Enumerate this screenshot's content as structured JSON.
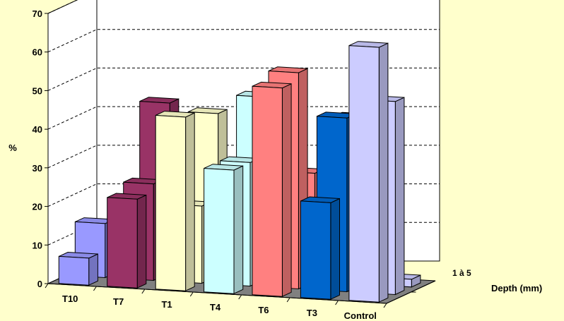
{
  "chart_data": {
    "type": "bar",
    "subtype": "3d-column",
    "title": "",
    "ylabel": "%",
    "zlabel": "Depth (mm)",
    "ylim": [
      0,
      70
    ],
    "yticks": [
      0,
      10,
      20,
      30,
      40,
      50,
      60,
      70
    ],
    "grid": true,
    "categories": [
      "T10",
      "T7",
      "T1",
      "T4",
      "T6",
      "T3",
      "Control"
    ],
    "depth_tick_label": "1 à 5",
    "colors": {
      "T10": "#9999ff",
      "T7": "#993366",
      "T1": "#ffffcc",
      "T4": "#ccffff",
      "T6": "#ff8080",
      "T3": "#0066cc",
      "Control": "#ccccff"
    },
    "rows": [
      {
        "depth_index": 0,
        "values": [
          7,
          23,
          45,
          32,
          54,
          25,
          66
        ]
      },
      {
        "depth_index": 1,
        "values": [
          14,
          25,
          20,
          32,
          56,
          45,
          50
        ]
      },
      {
        "depth_index": 2,
        "values": [
          5,
          44,
          42,
          47,
          28,
          43,
          2
        ]
      }
    ]
  }
}
